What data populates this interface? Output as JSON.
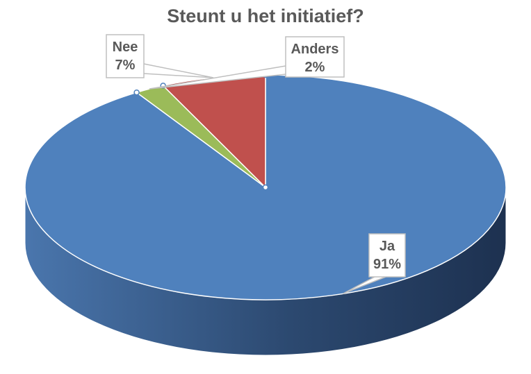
{
  "chart_data": {
    "type": "pie",
    "title": "Steunt u het initiatief?",
    "three_d": true,
    "start_angle_deg": 90,
    "direction": "clockwise",
    "slices": [
      {
        "label": "Ja",
        "value": 91,
        "display": "91%",
        "color": "#4f81bd"
      },
      {
        "label": "Anders",
        "value": 2,
        "display": "2%",
        "color": "#9bbb59"
      },
      {
        "label": "Nee",
        "value": 7,
        "display": "7%",
        "color": "#c0504d"
      }
    ],
    "legend": "none"
  }
}
